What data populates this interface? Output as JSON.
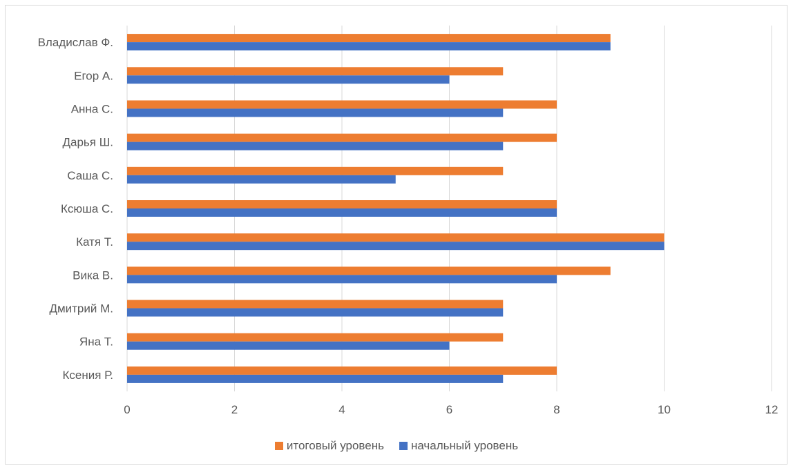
{
  "chart_data": {
    "type": "bar",
    "orientation": "horizontal",
    "categories": [
      "Ксения Р.",
      "Яна Т.",
      "Дмитрий М.",
      "Вика В.",
      "Катя Т.",
      "Ксюша С.",
      "Саша С.",
      "Дарья Ш.",
      "Анна С.",
      "Егор А.",
      "Владислав Ф."
    ],
    "series": [
      {
        "name": "итоговый уровень",
        "color": "#ED7D31",
        "values": [
          8,
          7,
          7,
          9,
          10,
          8,
          7,
          8,
          8,
          7,
          9
        ]
      },
      {
        "name": "начальный уровень",
        "color": "#4472C4",
        "values": [
          7,
          6,
          7,
          8,
          10,
          8,
          5,
          7,
          7,
          6,
          9
        ]
      }
    ],
    "xlim": [
      0,
      12
    ],
    "xticks": [
      0,
      2,
      4,
      6,
      8,
      10,
      12
    ],
    "grid": true,
    "legend_position": "bottom",
    "title": "",
    "xlabel": "",
    "ylabel": ""
  },
  "legend": {
    "items": [
      {
        "label": "итоговый уровень",
        "color": "#ED7D31"
      },
      {
        "label": "начальный уровень",
        "color": "#4472C4"
      }
    ]
  }
}
